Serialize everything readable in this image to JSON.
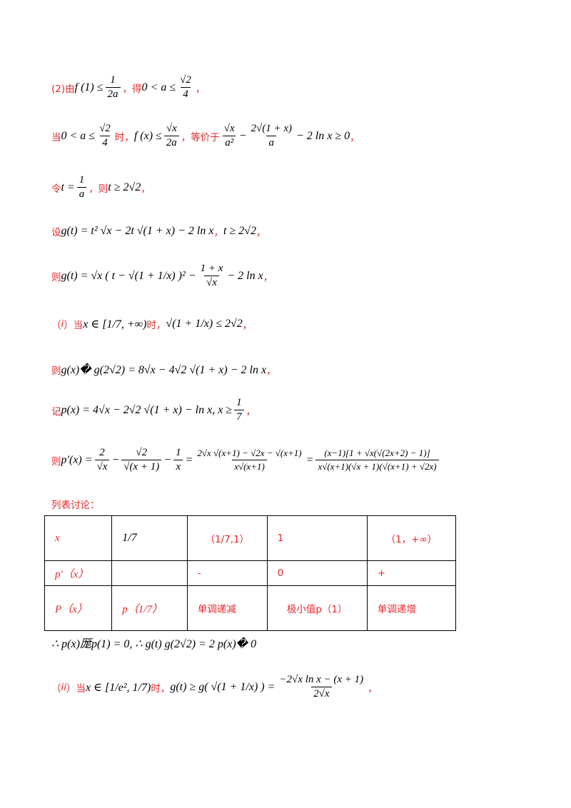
{
  "lines": {
    "l1": {
      "prefix": "(2)由",
      "math_a": "f (1) ≤",
      "frac1_n": "1",
      "frac1_d": "2a",
      "mid": "，得",
      "math_b": "0 < a ≤",
      "frac2_n": "√2",
      "frac2_d": "4",
      "suffix": "，"
    },
    "l2": {
      "prefix": "当",
      "math_a": "0 < a ≤",
      "frac1_n": "√2",
      "frac1_d": "4",
      "mid1": "时，",
      "math_b": "f (x) ≤",
      "frac2_n": "√x",
      "frac2_d": "2a",
      "mid2": "，等价于",
      "frac3_n": "√x",
      "frac3_d": "a²",
      "minus": "−",
      "frac4_n": "2√(1 + x)",
      "frac4_d": "a",
      "tail": "− 2 ln x ≥ 0",
      "suffix": "，"
    },
    "l3": {
      "prefix": "令",
      "math_a": "t =",
      "frac1_n": "1",
      "frac1_d": "a",
      "mid": "，则",
      "math_b": "t ≥ 2√2",
      "suffix": "，"
    },
    "l4": {
      "prefix": "设",
      "math": "g(t) = t² √x − 2t √(1 + x) − 2 ln x",
      "mid": "，",
      "math_b": "t ≥ 2√2",
      "suffix": "，"
    },
    "l5": {
      "prefix": "则",
      "math": "g(t) = √x ( t − √(1 + 1/x) )² −",
      "frac_n": "1 + x",
      "frac_d": "√x",
      "tail": "− 2 ln x",
      "suffix": "，"
    },
    "l6": {
      "prefix": "（",
      "roman": "i",
      "prefix2": "）当",
      "math": "x ∈ [1/7, +∞)",
      "mid": "时，",
      "math_b": "√(1 + 1/x) ≤ 2√2",
      "suffix": "，"
    },
    "l7": {
      "prefix": "则",
      "math": "g(x)� g(2√2) = 8√x − 4√2 √(1 + x) − 2 ln x",
      "suffix": "，"
    },
    "l8": {
      "prefix": "记",
      "math": "p(x) = 4√x − 2√2 √(1 + x) − ln x,    x ≥",
      "frac_n": "1",
      "frac_d": "7",
      "suffix": "，"
    },
    "l9": {
      "prefix": "则",
      "math": "p′(x) =",
      "f1n": "2",
      "f1d": "√x",
      "f2n": "√2",
      "f2d": "√(x + 1)",
      "f3n": "1",
      "f3d": "x",
      "f4n": "2√x √(x+1) − √2x − √(x+1)",
      "f4d": "x√(x+1)",
      "f5n": "(x−1)[1 + √x(√(2x+2) − 1)]",
      "f5d": "x√(x+1)(√x + 1)(√(x+1) + √2x)"
    },
    "l10": {
      "text": "列表讨论："
    },
    "l11": {
      "math": "∴ p(x)厖p(1) = 0, ∴ g(t)   g(2√2) = 2 p(x)� 0"
    },
    "l12": {
      "prefix": "（",
      "roman": "ii",
      "prefix2": "）当",
      "math": "x ∈ [1/e², 1/7)",
      "mid": "时，",
      "math_b": "g(t) ≥ g( √(1 + 1/x) ) =",
      "frac_n": "−2√x ln x − (x + 1)",
      "frac_d": "2√x",
      "suffix": "，"
    }
  },
  "table": {
    "rows": [
      [
        "x",
        "1/7",
        "（1/7,1）",
        "1",
        "（1，+∞）"
      ],
      [
        "p′（x）",
        "",
        "-",
        "0",
        "+"
      ],
      [
        "P（x）",
        "p（1/7）",
        "单调递减",
        "极小值p（1）",
        "单调递增"
      ]
    ]
  }
}
